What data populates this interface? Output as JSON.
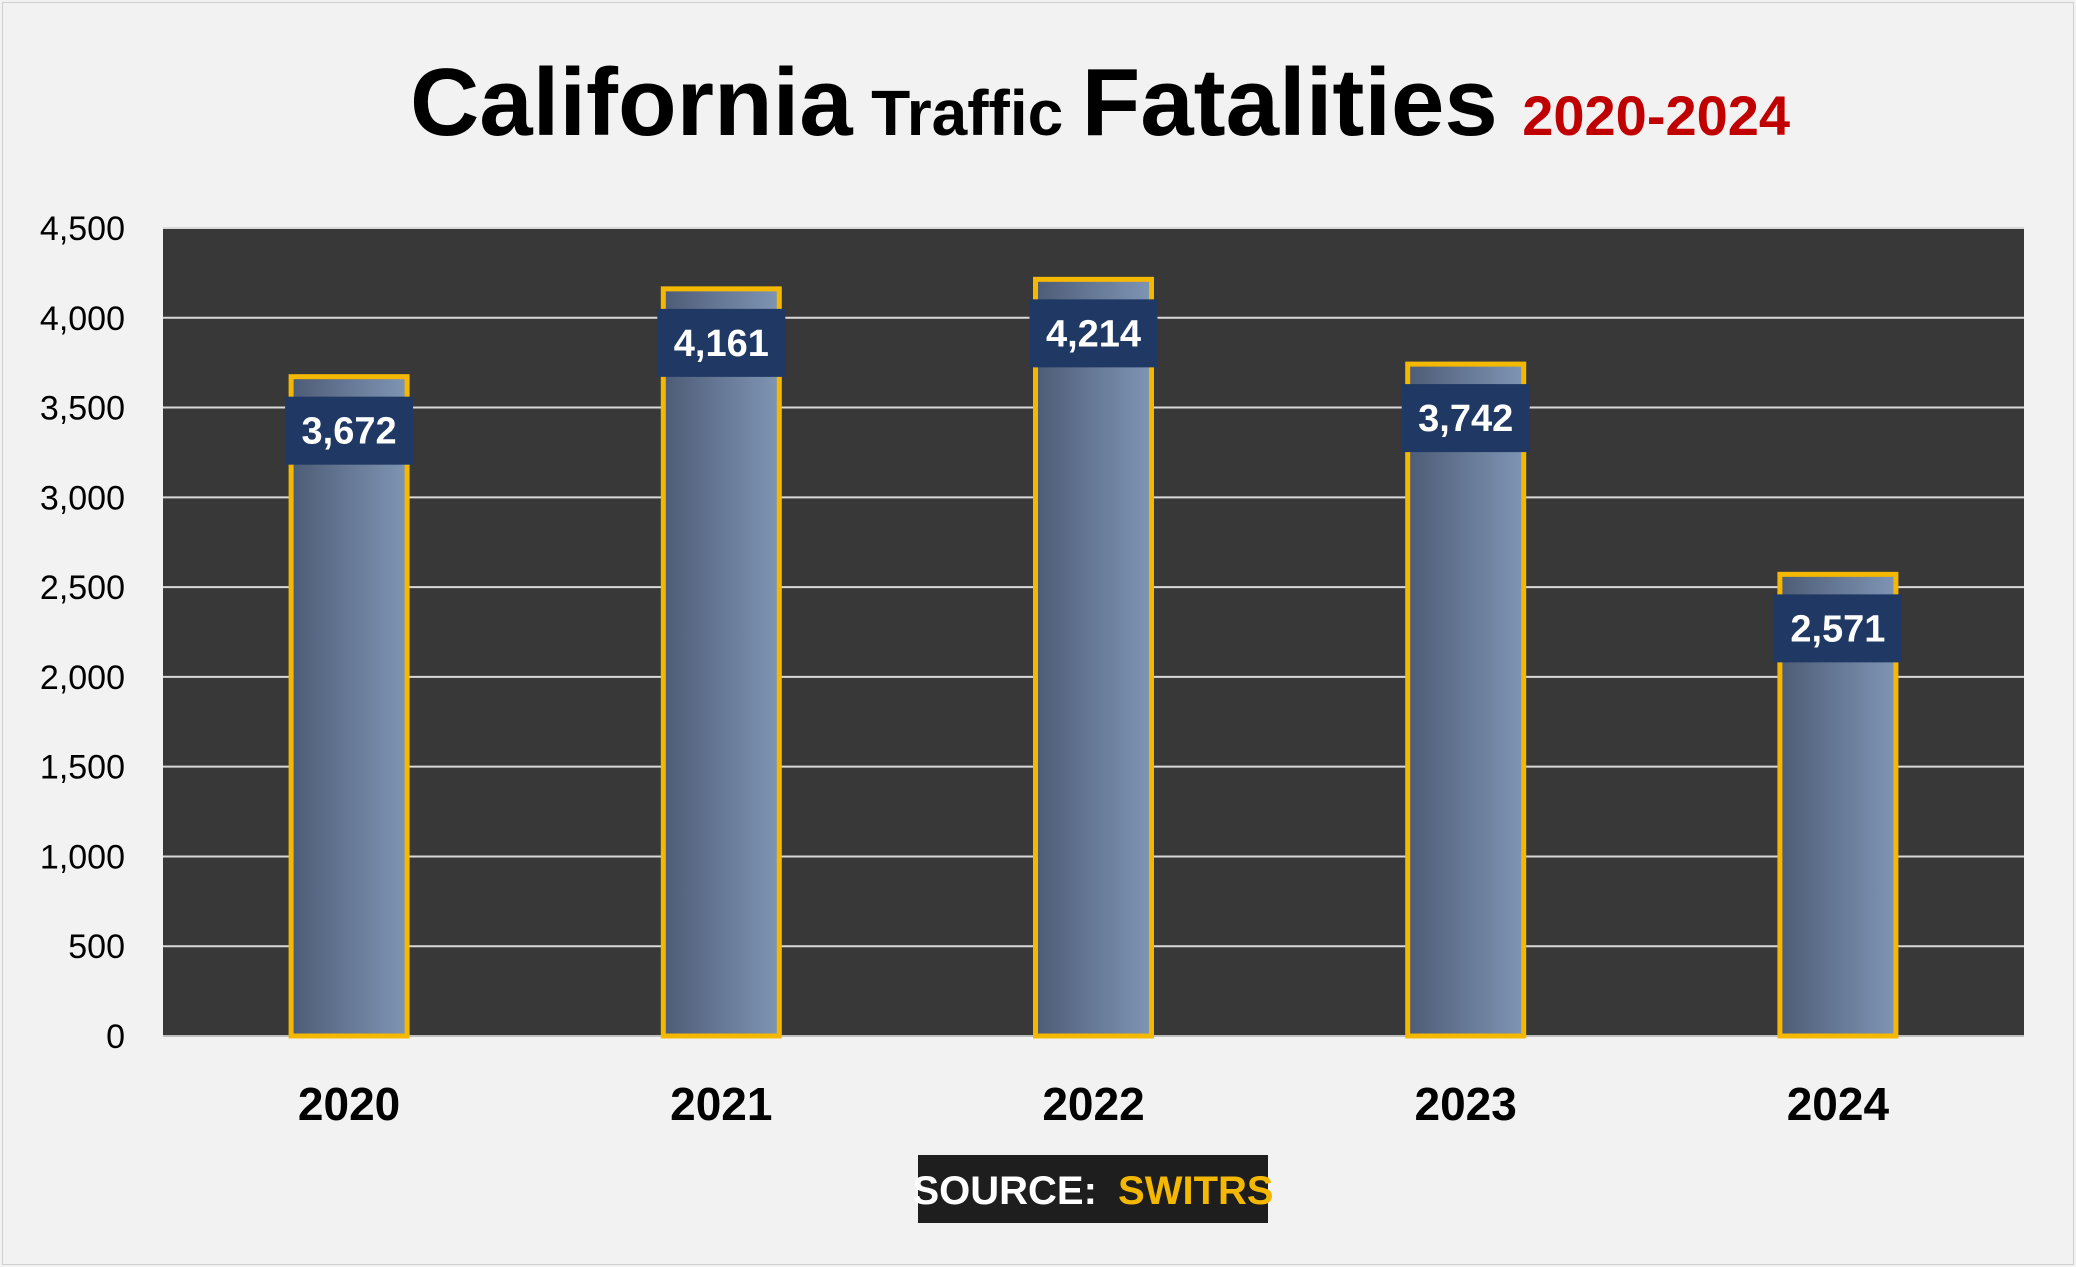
{
  "title": {
    "part1": "California",
    "part2": "Traffic",
    "part3": "Fatalities",
    "years": "2020-2024",
    "years_color": "#c00000"
  },
  "source": {
    "label": "SOURCE:",
    "value": "SWITRS",
    "value_color": "#f5b800"
  },
  "colors": {
    "plot_background": "#383838",
    "gridline": "#d9d9d9",
    "bar_outline": "#f5b800",
    "bar_fill_dark": "#4d5c76",
    "bar_fill_light": "#7f95b5",
    "data_label_background": "#1f3864",
    "data_label_text": "#ffffff"
  },
  "chart_data": {
    "type": "bar",
    "categories": [
      "2020",
      "2021",
      "2022",
      "2023",
      "2024"
    ],
    "values": [
      3672,
      4161,
      4214,
      3742,
      2571
    ],
    "data_labels": [
      "3,672",
      "4,161",
      "4,214",
      "3,742",
      "2,571"
    ],
    "ylim": [
      0,
      4500
    ],
    "yticks": [
      0,
      500,
      1000,
      1500,
      2000,
      2500,
      3000,
      3500,
      4000,
      4500
    ],
    "ytick_labels": [
      "0",
      "500",
      "1,000",
      "1,500",
      "2,000",
      "2,500",
      "3,000",
      "3,500",
      "4,000",
      "4,500"
    ],
    "grid": true,
    "legend": "none",
    "xlabel": "",
    "ylabel": ""
  }
}
